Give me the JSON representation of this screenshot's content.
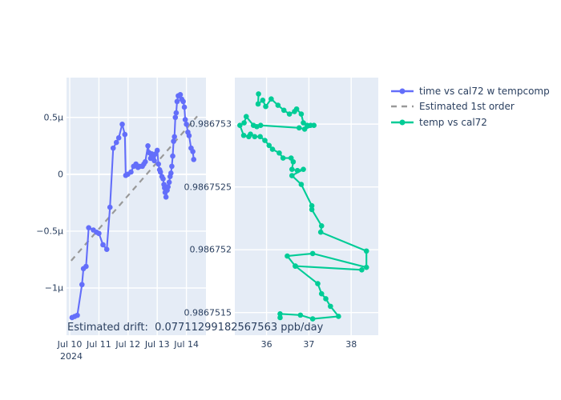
{
  "colors": {
    "plot_bg": "#e5ecf6",
    "grid": "#ffffff",
    "tick_text": "#2a3f5f",
    "series_time": "#636efa",
    "series_temp": "#00cc96",
    "trend_gray": "#999999"
  },
  "legend": {
    "items": [
      {
        "label": "time vs cal72 w tempcomp",
        "color": "#636efa",
        "dash": "solid",
        "marker": true
      },
      {
        "label": "Estimated 1st order",
        "color": "#999999",
        "dash": "dash",
        "marker": false
      },
      {
        "label": "temp vs cal72",
        "color": "#00cc96",
        "dash": "solid",
        "marker": true
      }
    ]
  },
  "annotation": {
    "text": "Estimated drift:  0.07711299182567563 ppb/day"
  },
  "chart_data": [
    {
      "type": "line",
      "name": "time vs cal72 w tempcomp",
      "color": "#636efa",
      "x_axis": {
        "range": [
          9.89,
          14.67
        ],
        "unit": "date (July 2024)",
        "year_label": "2024",
        "ticks": [
          {
            "v": 10,
            "label": "Jul 10"
          },
          {
            "v": 11,
            "label": "Jul 11"
          },
          {
            "v": 12,
            "label": "Jul 12"
          },
          {
            "v": 13,
            "label": "Jul 13"
          },
          {
            "v": 14,
            "label": "Jul 14"
          }
        ]
      },
      "y_axis": {
        "range": [
          -1.415,
          0.85
        ],
        "unit": "relative (micro)",
        "ticks": [
          {
            "v": 0.5,
            "label": "0.5μ"
          },
          {
            "v": 0,
            "label": "0"
          },
          {
            "v": -0.5,
            "label": "−0.5μ"
          },
          {
            "v": -1,
            "label": "−1μ"
          }
        ]
      },
      "points": [
        [
          10.08,
          -1.26
        ],
        [
          10.17,
          -1.25
        ],
        [
          10.26,
          -1.24
        ],
        [
          10.42,
          -0.97
        ],
        [
          10.47,
          -0.83
        ],
        [
          10.56,
          -0.81
        ],
        [
          10.65,
          -0.47
        ],
        [
          10.81,
          -0.49
        ],
        [
          10.92,
          -0.51
        ],
        [
          11.0,
          -0.52
        ],
        [
          11.14,
          -0.62
        ],
        [
          11.27,
          -0.66
        ],
        [
          11.38,
          -0.29
        ],
        [
          11.49,
          0.23
        ],
        [
          11.6,
          0.28
        ],
        [
          11.68,
          0.32
        ],
        [
          11.8,
          0.44
        ],
        [
          11.89,
          0.35
        ],
        [
          11.92,
          -0.01
        ],
        [
          11.99,
          0.0
        ],
        [
          12.1,
          0.02
        ],
        [
          12.19,
          0.07
        ],
        [
          12.27,
          0.09
        ],
        [
          12.34,
          0.06
        ],
        [
          12.4,
          0.07
        ],
        [
          12.49,
          0.07
        ],
        [
          12.54,
          0.09
        ],
        [
          12.59,
          0.11
        ],
        [
          12.68,
          0.25
        ],
        [
          12.72,
          0.19
        ],
        [
          12.77,
          0.14
        ],
        [
          12.81,
          0.18
        ],
        [
          12.86,
          0.16
        ],
        [
          12.9,
          0.12
        ],
        [
          12.95,
          0.18
        ],
        [
          13.0,
          0.21
        ],
        [
          13.04,
          0.09
        ],
        [
          13.08,
          0.04
        ],
        [
          13.11,
          0.02
        ],
        [
          13.16,
          -0.02
        ],
        [
          13.2,
          -0.04
        ],
        [
          13.23,
          -0.09
        ],
        [
          13.25,
          -0.12
        ],
        [
          13.27,
          -0.16
        ],
        [
          13.3,
          -0.2
        ],
        [
          13.34,
          -0.14
        ],
        [
          13.37,
          -0.11
        ],
        [
          13.41,
          -0.07
        ],
        [
          13.44,
          -0.02
        ],
        [
          13.47,
          0.01
        ],
        [
          13.5,
          0.07
        ],
        [
          13.53,
          0.16
        ],
        [
          13.56,
          0.29
        ],
        [
          13.59,
          0.33
        ],
        [
          13.62,
          0.5
        ],
        [
          13.65,
          0.54
        ],
        [
          13.68,
          0.64
        ],
        [
          13.72,
          0.69
        ],
        [
          13.79,
          0.7
        ],
        [
          13.84,
          0.66
        ],
        [
          13.89,
          0.64
        ],
        [
          13.93,
          0.59
        ],
        [
          13.96,
          0.48
        ],
        [
          14.0,
          0.44
        ],
        [
          14.05,
          0.37
        ],
        [
          14.09,
          0.34
        ],
        [
          14.16,
          0.23
        ],
        [
          14.22,
          0.2
        ],
        [
          14.25,
          0.13
        ]
      ],
      "trend": {
        "name": "Estimated 1st order",
        "color": "#999999",
        "style": "dashed",
        "points": [
          [
            10.05,
            -0.76
          ],
          [
            14.37,
            0.51
          ]
        ]
      }
    },
    {
      "type": "line",
      "name": "temp vs cal72",
      "color": "#00cc96",
      "x_axis": {
        "range": [
          35.25,
          38.64
        ],
        "unit": "temp",
        "ticks": [
          {
            "v": 36,
            "label": "36"
          },
          {
            "v": 37,
            "label": "37"
          },
          {
            "v": 38,
            "label": "38"
          }
        ]
      },
      "y_axis": {
        "range": [
          0.98675132,
          0.98675337
        ],
        "unit": "cal72",
        "ticks": [
          {
            "v": 0.986753,
            "label": "0.986753"
          },
          {
            "v": 0.9867525,
            "label": "0.9867525"
          },
          {
            "v": 0.986752,
            "label": "0.986752"
          },
          {
            "v": 0.9867515,
            "label": "0.9867515"
          }
        ]
      },
      "points": [
        [
          35.81,
          0.98675324
        ],
        [
          35.8,
          0.98675316
        ],
        [
          35.91,
          0.98675319
        ],
        [
          35.98,
          0.98675314
        ],
        [
          36.11,
          0.9867532
        ],
        [
          36.27,
          0.98675315
        ],
        [
          36.41,
          0.98675311
        ],
        [
          36.54,
          0.98675308
        ],
        [
          36.66,
          0.9867531
        ],
        [
          36.71,
          0.98675312
        ],
        [
          36.82,
          0.98675308
        ],
        [
          36.87,
          0.98675301
        ],
        [
          36.96,
          0.98675299
        ],
        [
          37.04,
          0.98675299
        ],
        [
          37.12,
          0.98675299
        ],
        [
          36.9,
          0.98675296
        ],
        [
          36.77,
          0.98675297
        ],
        [
          35.86,
          0.98675299
        ],
        [
          35.77,
          0.98675298
        ],
        [
          35.69,
          0.98675299
        ],
        [
          35.52,
          0.98675306
        ],
        [
          35.47,
          0.98675301
        ],
        [
          35.37,
          0.98675299
        ],
        [
          35.46,
          0.98675291
        ],
        [
          35.58,
          0.9867529
        ],
        [
          35.62,
          0.98675292
        ],
        [
          35.72,
          0.9867529
        ],
        [
          35.85,
          0.9867529
        ],
        [
          35.96,
          0.98675287
        ],
        [
          36.06,
          0.98675283
        ],
        [
          36.14,
          0.9867528
        ],
        [
          36.3,
          0.98675277
        ],
        [
          36.39,
          0.98675273
        ],
        [
          36.58,
          0.98675273
        ],
        [
          36.63,
          0.9867527
        ],
        [
          36.6,
          0.98675264
        ],
        [
          36.73,
          0.98675263
        ],
        [
          36.87,
          0.98675264
        ],
        [
          36.6,
          0.98675259
        ],
        [
          36.82,
          0.98675252
        ],
        [
          37.07,
          0.98675235
        ],
        [
          37.07,
          0.98675232
        ],
        [
          37.3,
          0.98675219
        ],
        [
          37.28,
          0.98675214
        ],
        [
          38.36,
          0.98675199
        ],
        [
          38.36,
          0.98675186
        ],
        [
          37.09,
          0.98675197
        ],
        [
          36.49,
          0.98675195
        ],
        [
          36.68,
          0.98675187
        ],
        [
          38.25,
          0.98675184
        ],
        [
          36.68,
          0.98675187
        ],
        [
          37.21,
          0.98675173
        ],
        [
          37.3,
          0.98675165
        ],
        [
          37.4,
          0.98675161
        ],
        [
          37.51,
          0.98675155
        ],
        [
          37.7,
          0.98675147
        ],
        [
          37.09,
          0.98675145
        ],
        [
          36.8,
          0.98675148
        ],
        [
          36.32,
          0.98675149
        ],
        [
          36.32,
          0.98675146
        ]
      ]
    }
  ]
}
